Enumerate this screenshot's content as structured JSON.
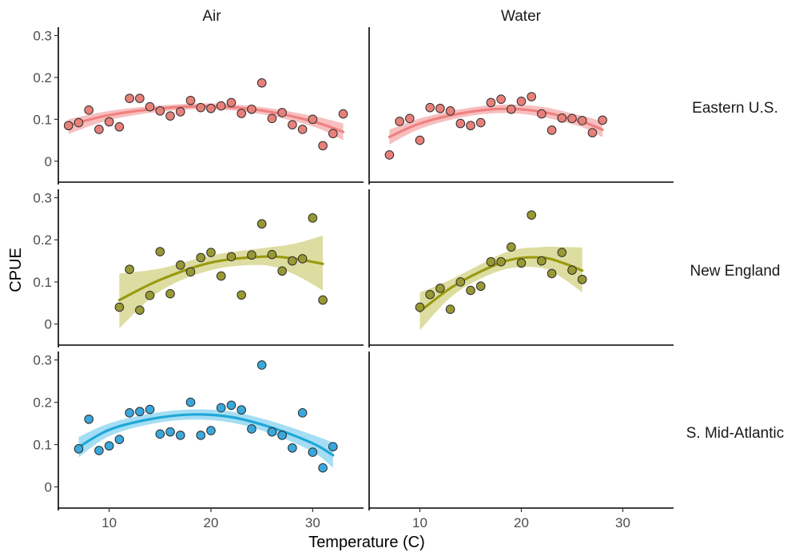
{
  "chart_data": {
    "type": "scatter",
    "xlabel": "Temperature (C)",
    "ylabel": "CPUE",
    "columns": [
      "Air",
      "Water"
    ],
    "rows": [
      "Eastern U.S.",
      "New England",
      "S. Mid-Atlantic"
    ],
    "xlim": [
      5,
      35
    ],
    "ylim": [
      -0.05,
      0.32
    ],
    "x_ticks": [
      10,
      20,
      30
    ],
    "y_ticks": [
      0,
      0.1,
      0.2,
      0.3
    ],
    "y_tick_labels": [
      "0",
      "0.1",
      "0.2",
      "0.3"
    ],
    "grid": false,
    "legend": "none",
    "colors": {
      "Eastern U.S.": {
        "line": "#f08080",
        "band": "#f4a4a4",
        "point": "#e8807a"
      },
      "New England": {
        "line": "#9a9a10",
        "band": "#cfcf7a",
        "point": "#999933"
      },
      "S. Mid-Atlantic": {
        "line": "#1fa8d8",
        "band": "#7fd0f0",
        "point": "#3aa8dc"
      }
    },
    "panels": [
      {
        "column": "Air",
        "row": "Eastern U.S.",
        "points": [
          [
            6,
            0.085
          ],
          [
            7,
            0.092
          ],
          [
            8,
            0.122
          ],
          [
            9,
            0.076
          ],
          [
            10,
            0.094
          ],
          [
            11,
            0.082
          ],
          [
            12,
            0.15
          ],
          [
            13,
            0.15
          ],
          [
            14,
            0.13
          ],
          [
            15,
            0.12
          ],
          [
            16,
            0.108
          ],
          [
            17,
            0.118
          ],
          [
            18,
            0.145
          ],
          [
            19,
            0.128
          ],
          [
            20,
            0.126
          ],
          [
            21,
            0.132
          ],
          [
            22,
            0.14
          ],
          [
            23,
            0.114
          ],
          [
            24,
            0.124
          ],
          [
            25,
            0.187
          ],
          [
            26,
            0.102
          ],
          [
            27,
            0.116
          ],
          [
            28,
            0.087
          ],
          [
            29,
            0.076
          ],
          [
            30,
            0.1
          ],
          [
            31,
            0.037
          ],
          [
            32,
            0.066
          ],
          [
            33,
            0.113
          ]
        ],
        "fit": [
          [
            6,
            0.086
          ],
          [
            10,
            0.11
          ],
          [
            15,
            0.126
          ],
          [
            20,
            0.131
          ],
          [
            25,
            0.121
          ],
          [
            30,
            0.095
          ],
          [
            33,
            0.07
          ]
        ],
        "band_upper": [
          [
            6,
            0.1
          ],
          [
            10,
            0.12
          ],
          [
            15,
            0.133
          ],
          [
            20,
            0.138
          ],
          [
            25,
            0.129
          ],
          [
            30,
            0.108
          ],
          [
            33,
            0.09
          ]
        ],
        "band_lower": [
          [
            6,
            0.065
          ],
          [
            10,
            0.098
          ],
          [
            15,
            0.118
          ],
          [
            20,
            0.124
          ],
          [
            25,
            0.112
          ],
          [
            30,
            0.083
          ],
          [
            33,
            0.05
          ]
        ]
      },
      {
        "column": "Water",
        "row": "Eastern U.S.",
        "points": [
          [
            7,
            0.015
          ],
          [
            8,
            0.095
          ],
          [
            9,
            0.102
          ],
          [
            10,
            0.05
          ],
          [
            11,
            0.128
          ],
          [
            12,
            0.126
          ],
          [
            13,
            0.12
          ],
          [
            14,
            0.09
          ],
          [
            15,
            0.085
          ],
          [
            16,
            0.092
          ],
          [
            17,
            0.14
          ],
          [
            18,
            0.148
          ],
          [
            19,
            0.124
          ],
          [
            20,
            0.143
          ],
          [
            21,
            0.154
          ],
          [
            22,
            0.113
          ],
          [
            23,
            0.074
          ],
          [
            24,
            0.103
          ],
          [
            25,
            0.102
          ],
          [
            26,
            0.097
          ],
          [
            27,
            0.068
          ],
          [
            28,
            0.098
          ]
        ],
        "fit": [
          [
            7,
            0.058
          ],
          [
            10,
            0.09
          ],
          [
            14,
            0.114
          ],
          [
            18,
            0.125
          ],
          [
            22,
            0.118
          ],
          [
            26,
            0.094
          ],
          [
            28,
            0.075
          ]
        ],
        "band_upper": [
          [
            7,
            0.075
          ],
          [
            10,
            0.102
          ],
          [
            14,
            0.124
          ],
          [
            18,
            0.135
          ],
          [
            22,
            0.13
          ],
          [
            26,
            0.108
          ],
          [
            28,
            0.095
          ]
        ],
        "band_lower": [
          [
            7,
            0.04
          ],
          [
            10,
            0.077
          ],
          [
            14,
            0.104
          ],
          [
            18,
            0.115
          ],
          [
            22,
            0.106
          ],
          [
            26,
            0.081
          ],
          [
            28,
            0.057
          ]
        ]
      },
      {
        "column": "Air",
        "row": "New England",
        "points": [
          [
            11,
            0.04
          ],
          [
            12,
            0.13
          ],
          [
            13,
            0.033
          ],
          [
            14,
            0.068
          ],
          [
            15,
            0.172
          ],
          [
            16,
            0.072
          ],
          [
            17,
            0.14
          ],
          [
            18,
            0.124
          ],
          [
            19,
            0.158
          ],
          [
            20,
            0.17
          ],
          [
            21,
            0.114
          ],
          [
            22,
            0.16
          ],
          [
            23,
            0.069
          ],
          [
            24,
            0.164
          ],
          [
            25,
            0.238
          ],
          [
            26,
            0.165
          ],
          [
            27,
            0.126
          ],
          [
            28,
            0.15
          ],
          [
            29,
            0.155
          ],
          [
            30,
            0.252
          ],
          [
            31,
            0.057
          ]
        ],
        "fit": [
          [
            11,
            0.057
          ],
          [
            15,
            0.105
          ],
          [
            20,
            0.146
          ],
          [
            25,
            0.16
          ],
          [
            28,
            0.156
          ],
          [
            31,
            0.143
          ]
        ],
        "band_upper": [
          [
            11,
            0.12
          ],
          [
            15,
            0.132
          ],
          [
            20,
            0.163
          ],
          [
            25,
            0.18
          ],
          [
            28,
            0.19
          ],
          [
            31,
            0.21
          ]
        ],
        "band_lower": [
          [
            11,
            -0.01
          ],
          [
            15,
            0.078
          ],
          [
            20,
            0.128
          ],
          [
            25,
            0.14
          ],
          [
            28,
            0.12
          ],
          [
            31,
            0.08
          ]
        ]
      },
      {
        "column": "Water",
        "row": "New England",
        "points": [
          [
            10,
            0.04
          ],
          [
            11,
            0.07
          ],
          [
            12,
            0.085
          ],
          [
            13,
            0.035
          ],
          [
            14,
            0.1
          ],
          [
            15,
            0.08
          ],
          [
            16,
            0.09
          ],
          [
            17,
            0.148
          ],
          [
            18,
            0.148
          ],
          [
            19,
            0.183
          ],
          [
            20,
            0.145
          ],
          [
            21,
            0.259
          ],
          [
            22,
            0.15
          ],
          [
            23,
            0.12
          ],
          [
            24,
            0.17
          ],
          [
            25,
            0.128
          ],
          [
            26,
            0.106
          ]
        ],
        "fit": [
          [
            10,
            0.03
          ],
          [
            13,
            0.085
          ],
          [
            16,
            0.125
          ],
          [
            19,
            0.153
          ],
          [
            22,
            0.158
          ],
          [
            24,
            0.146
          ],
          [
            26,
            0.127
          ]
        ],
        "band_upper": [
          [
            10,
            0.075
          ],
          [
            13,
            0.105
          ],
          [
            16,
            0.142
          ],
          [
            19,
            0.175
          ],
          [
            22,
            0.183
          ],
          [
            24,
            0.183
          ],
          [
            26,
            0.182
          ]
        ],
        "band_lower": [
          [
            10,
            -0.015
          ],
          [
            13,
            0.063
          ],
          [
            16,
            0.108
          ],
          [
            19,
            0.133
          ],
          [
            22,
            0.133
          ],
          [
            24,
            0.11
          ],
          [
            26,
            0.075
          ]
        ]
      },
      {
        "column": "Air",
        "row": "S. Mid-Atlantic",
        "points": [
          [
            7,
            0.09
          ],
          [
            8,
            0.16
          ],
          [
            9,
            0.086
          ],
          [
            10,
            0.097
          ],
          [
            11,
            0.112
          ],
          [
            12,
            0.175
          ],
          [
            13,
            0.178
          ],
          [
            14,
            0.183
          ],
          [
            15,
            0.125
          ],
          [
            16,
            0.13
          ],
          [
            17,
            0.122
          ],
          [
            18,
            0.2
          ],
          [
            19,
            0.122
          ],
          [
            20,
            0.133
          ],
          [
            21,
            0.187
          ],
          [
            22,
            0.193
          ],
          [
            23,
            0.182
          ],
          [
            24,
            0.137
          ],
          [
            25,
            0.288
          ],
          [
            26,
            0.13
          ],
          [
            27,
            0.122
          ],
          [
            28,
            0.092
          ],
          [
            29,
            0.175
          ],
          [
            30,
            0.082
          ],
          [
            31,
            0.045
          ],
          [
            32,
            0.095
          ]
        ],
        "fit": [
          [
            7,
            0.094
          ],
          [
            10,
            0.135
          ],
          [
            14,
            0.16
          ],
          [
            18,
            0.171
          ],
          [
            22,
            0.165
          ],
          [
            26,
            0.14
          ],
          [
            30,
            0.103
          ],
          [
            32,
            0.075
          ]
        ],
        "band_upper": [
          [
            7,
            0.118
          ],
          [
            10,
            0.15
          ],
          [
            14,
            0.173
          ],
          [
            18,
            0.183
          ],
          [
            22,
            0.178
          ],
          [
            26,
            0.155
          ],
          [
            30,
            0.123
          ],
          [
            32,
            0.105
          ]
        ],
        "band_lower": [
          [
            7,
            0.07
          ],
          [
            10,
            0.12
          ],
          [
            14,
            0.148
          ],
          [
            18,
            0.159
          ],
          [
            22,
            0.152
          ],
          [
            26,
            0.125
          ],
          [
            30,
            0.083
          ],
          [
            32,
            0.045
          ]
        ]
      }
    ]
  }
}
